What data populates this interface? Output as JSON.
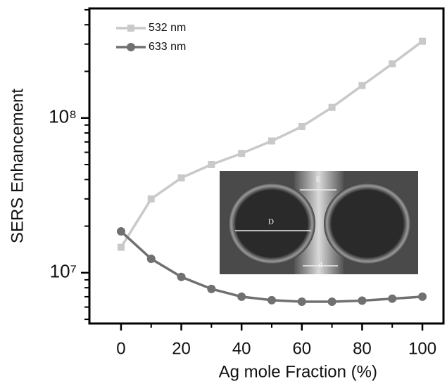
{
  "chart_data": {
    "type": "line",
    "x": [
      0,
      10,
      20,
      30,
      40,
      50,
      60,
      70,
      80,
      90,
      100
    ],
    "series": [
      {
        "name": "532 nm",
        "color": "#c9c9c9",
        "marker": "square",
        "values": [
          14600000,
          30000000,
          41000000,
          50000000,
          59000000,
          71000000,
          88000000,
          117000000,
          162000000,
          224000000,
          313000000
        ]
      },
      {
        "name": "633 nm",
        "color": "#707070",
        "marker": "circle",
        "values": [
          18500000,
          12300000,
          9400000,
          7860000,
          7000000,
          6650000,
          6500000,
          6500000,
          6600000,
          6800000,
          7000000
        ]
      }
    ],
    "xlabel": "Ag mole Fraction  (%)",
    "ylabel": "SERS Enhancement",
    "xlim": [
      -10.5,
      107
    ],
    "xticks": [
      0,
      20,
      40,
      60,
      80,
      100
    ],
    "xminorticks": [
      10,
      30,
      50,
      70,
      90
    ],
    "ylim": [
      4700000,
      510000000
    ],
    "ylog": true,
    "yticks": [
      {
        "value": 10000000,
        "label": "10⁷"
      },
      {
        "value": 100000000,
        "label": "10⁸"
      }
    ],
    "yminorticks": [
      5000000,
      6000000,
      7000000,
      8000000,
      9000000,
      20000000,
      30000000,
      40000000,
      50000000,
      60000000,
      70000000,
      80000000,
      90000000,
      200000000,
      300000000,
      400000000,
      500000000
    ],
    "legend": "upper left",
    "inset_labels": [
      "E",
      "D",
      "d"
    ]
  }
}
